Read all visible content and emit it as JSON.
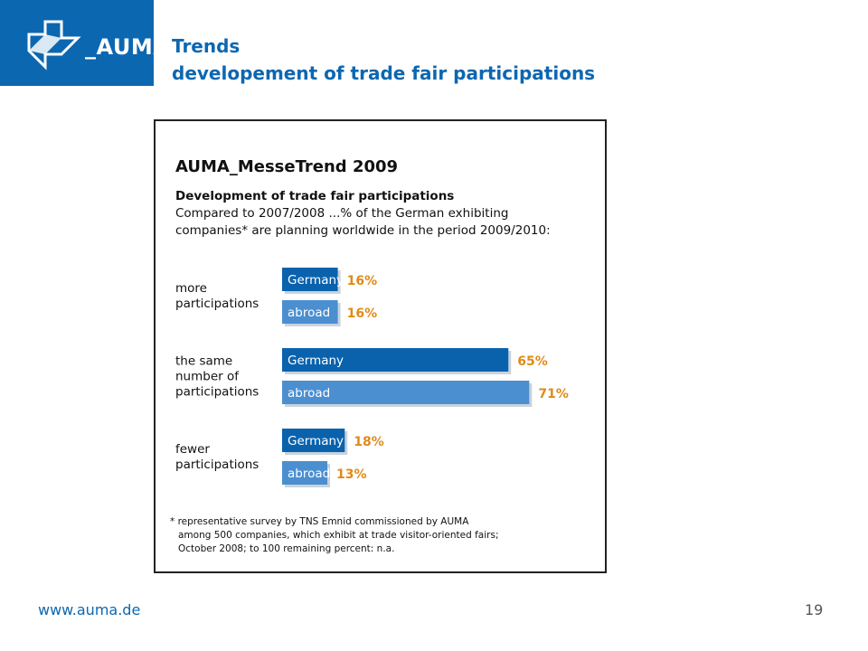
{
  "logo": {
    "text": "_AUMA"
  },
  "slide": {
    "title_line1": "Trends",
    "title_line2": "developement of trade fair participations"
  },
  "footer": {
    "url": "www.auma.de",
    "page": "19"
  },
  "colors": {
    "brand_blue": "#0c67b1",
    "germany_bar": "#0a62ad",
    "abroad_bar": "#4b8fd0",
    "value_orange": "#e08a1a"
  },
  "chart_data": {
    "type": "bar",
    "title": "AUMA_MesseTrend 2009",
    "subtitle_bold": "Development of trade fair participations",
    "subtitle_line2": "Compared to 2007/2008 ...% of the German exhibiting",
    "subtitle_line3": "companies* are planning worldwide in the period 2009/2010:",
    "orientation": "horizontal",
    "xlim": [
      0,
      100
    ],
    "groups": [
      {
        "label_lines": [
          "more",
          "participations"
        ],
        "bars": [
          {
            "name": "Germany",
            "value": 16,
            "label": "16%"
          },
          {
            "name": "abroad",
            "value": 16,
            "label": "16%"
          }
        ]
      },
      {
        "label_lines": [
          "the same",
          "number of",
          "participations"
        ],
        "bars": [
          {
            "name": "Germany",
            "value": 65,
            "label": "65%"
          },
          {
            "name": "abroad",
            "value": 71,
            "label": "71%"
          }
        ]
      },
      {
        "label_lines": [
          "fewer",
          "participations"
        ],
        "bars": [
          {
            "name": "Germany",
            "value": 18,
            "label": "18%"
          },
          {
            "name": "abroad",
            "value": 13,
            "label": "13%"
          }
        ]
      }
    ],
    "footnote": [
      "* representative survey by TNS Emnid commissioned by AUMA",
      "among 500 companies, which exhibit at trade visitor-oriented fairs;",
      "October 2008; to 100 remaining percent: n.a."
    ]
  }
}
